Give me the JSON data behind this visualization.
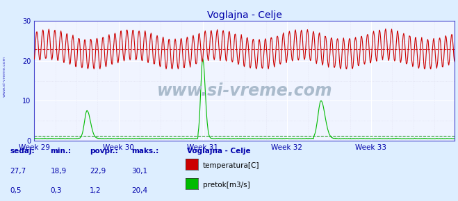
{
  "title": "Voglajna - Celje",
  "bg_color": "#ddeeff",
  "plot_bg_color": "#f0f4ff",
  "grid_color_major": "#ffffff",
  "grid_color_minor": "#ddddff",
  "border_color": "#4444cc",
  "weeks": [
    "Week 29",
    "Week 30",
    "Week 31",
    "Week 32",
    "Week 33"
  ],
  "week_positions": [
    0,
    168,
    336,
    504,
    672
  ],
  "total_points": 840,
  "ylim": [
    0,
    30
  ],
  "temp_color": "#cc0000",
  "flow_color": "#00bb00",
  "avg_temp_color": "#cc0000",
  "avg_flow_color": "#008800",
  "watermark": "www.si-vreme.com",
  "watermark_color": "#aabbcc",
  "stats_headers": [
    "sedaj:",
    "min.:",
    "povpr.:",
    "maks.:"
  ],
  "stats_temp": [
    "27,7",
    "18,9",
    "22,9",
    "30,1"
  ],
  "stats_flow": [
    "0,5",
    "0,3",
    "1,2",
    "20,4"
  ],
  "legend_title": "Voglajna - Celje",
  "legend_items": [
    "temperatura[C]",
    "pretok[m3/s]"
  ],
  "legend_colors": [
    "#cc0000",
    "#00bb00"
  ],
  "ylabel_ticks": [
    0,
    10,
    20,
    30
  ],
  "avg_temp": 22.9,
  "avg_flow": 1.2,
  "text_color": "#0000aa",
  "tick_color": "#4444cc",
  "spine_color": "#4444cc"
}
